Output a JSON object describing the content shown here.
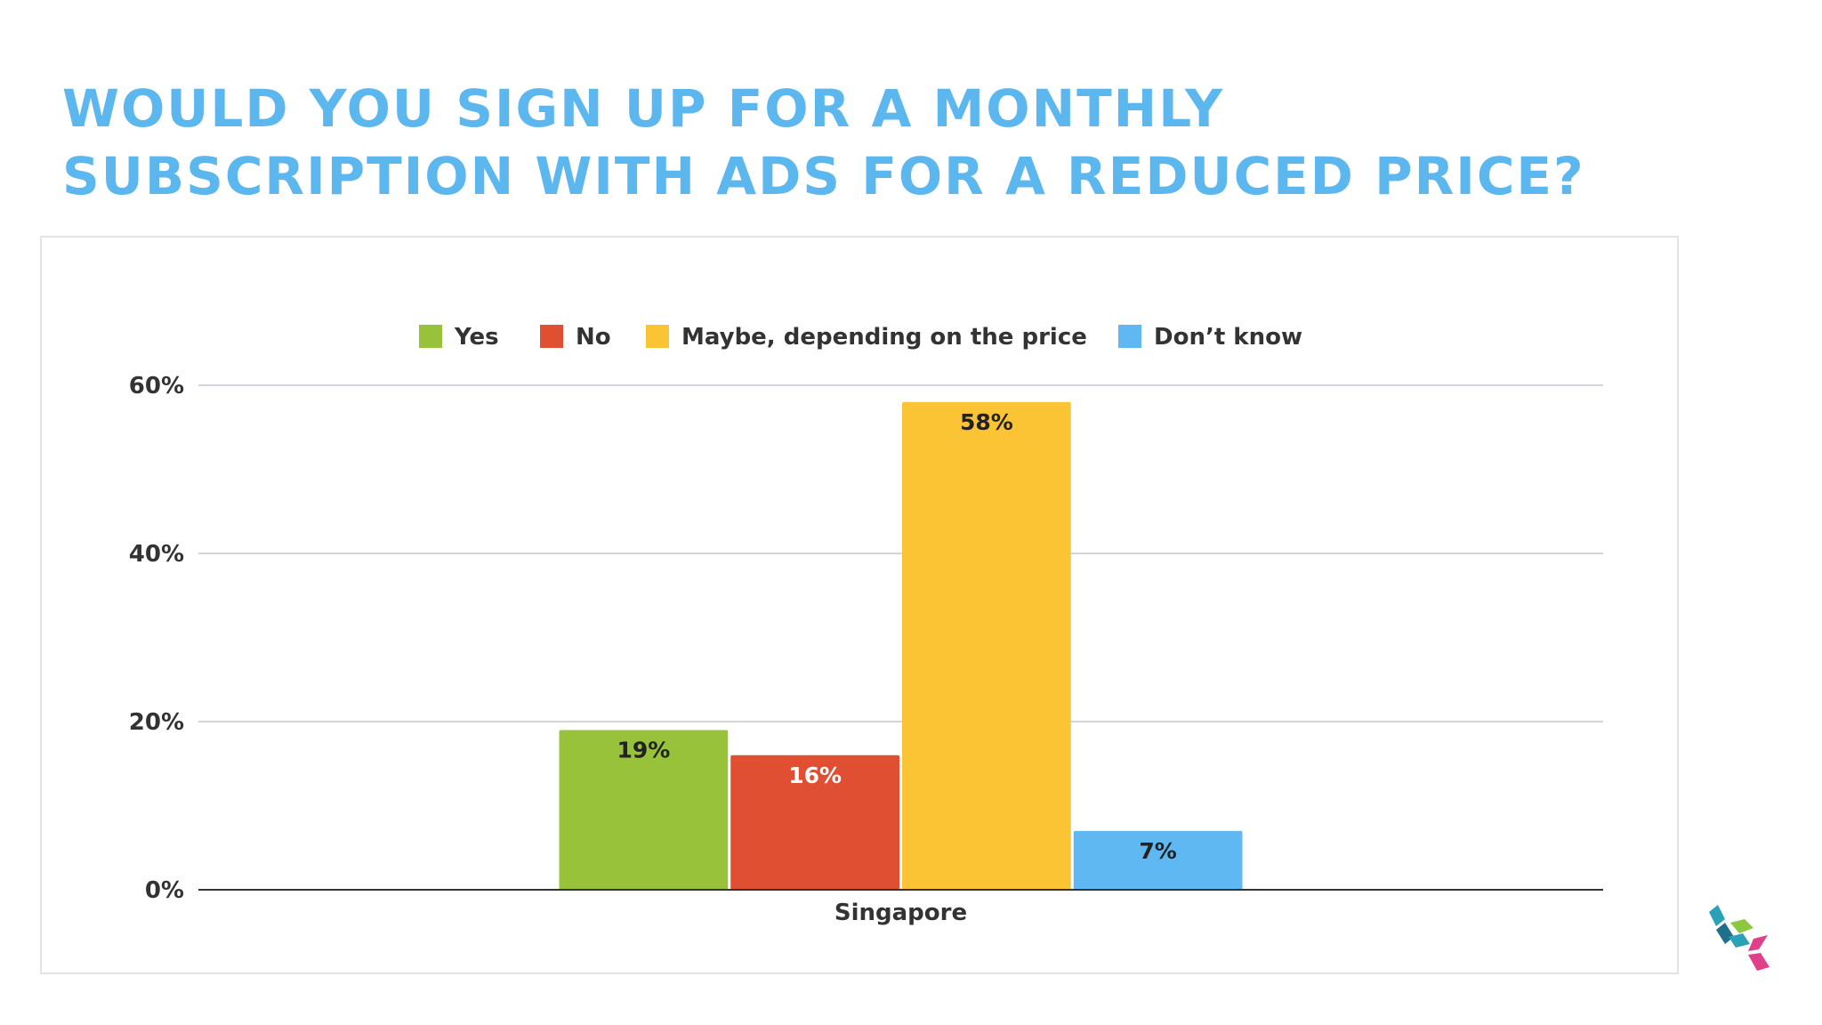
{
  "title": {
    "line1": "WOULD YOU SIGN UP FOR A MONTHLY",
    "line2": "SUBSCRIPTION WITH ADS FOR A REDUCED PRICE?",
    "color": "#5db7ef"
  },
  "chart_data": {
    "type": "bar",
    "title": "",
    "xlabel": "",
    "ylabel": "",
    "categories": [
      "Singapore"
    ],
    "ylim": [
      0,
      60
    ],
    "yticks": [
      "0%",
      "20%",
      "40%",
      "60%"
    ],
    "grid": true,
    "legend_position": "top",
    "series": [
      {
        "name": "Yes",
        "values": [
          19
        ],
        "label": "19%",
        "color": "#97c23a",
        "label_color": "#222222"
      },
      {
        "name": "No",
        "values": [
          16
        ],
        "label": "16%",
        "color": "#e04f31",
        "label_color": "#ffffff"
      },
      {
        "name": "Maybe, depending on the price",
        "values": [
          58
        ],
        "label": "58%",
        "color": "#fbc435",
        "label_color": "#222222"
      },
      {
        "name": "Don’t know",
        "values": [
          7
        ],
        "label": "7%",
        "color": "#5fb8f1",
        "label_color": "#222222"
      }
    ]
  },
  "logo": {
    "icon": "cube-stack-logo-icon",
    "colors": [
      "#2aa1b7",
      "#8dc63f",
      "#e0408a",
      "#1f6f8b"
    ]
  }
}
